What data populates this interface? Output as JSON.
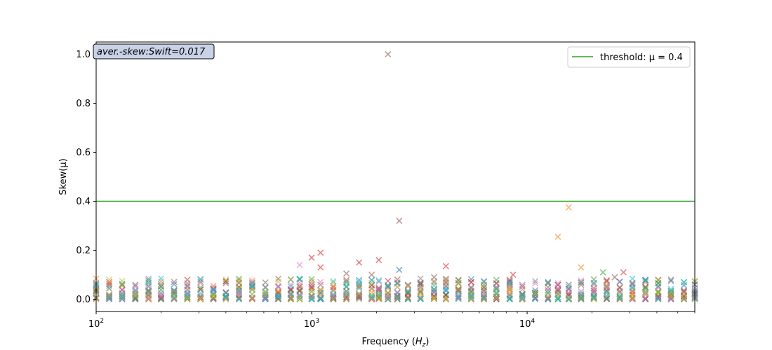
{
  "chart_data": {
    "type": "scatter",
    "xlabel": "Frequency (H_z)",
    "ylabel": "Skew(μ)",
    "xscale": "log",
    "xlim": [
      100,
      60000
    ],
    "ylim": [
      -0.05,
      1.05
    ],
    "x_ticks": [
      100,
      1000,
      10000
    ],
    "x_tick_labels": [
      {
        "base": "10",
        "exp": "2"
      },
      {
        "base": "10",
        "exp": "3"
      },
      {
        "base": "10",
        "exp": "4"
      }
    ],
    "y_ticks": [
      0.0,
      0.2,
      0.4,
      0.6,
      0.8,
      1.0
    ],
    "y_tick_labels": [
      "0.0",
      "0.2",
      "0.4",
      "0.6",
      "0.8",
      "1.0"
    ],
    "grid": false,
    "marker": "x",
    "legend": {
      "placement": "top-right",
      "entries": [
        {
          "label": "threshold: μ = 0.4",
          "color": "#2ca02c"
        }
      ]
    },
    "annotation": "aver.-skew:Swift=0.017",
    "threshold": {
      "y": 0.4,
      "color": "#2ca02c"
    },
    "frequencies": [
      100,
      115,
      132,
      152,
      175,
      200,
      230,
      265,
      305,
      350,
      400,
      460,
      530,
      610,
      700,
      800,
      880,
      1000,
      1100,
      1260,
      1450,
      1660,
      1900,
      2050,
      2260,
      2500,
      2800,
      3200,
      3700,
      4200,
      4800,
      5500,
      6300,
      7200,
      8300,
      9500,
      10900,
      12500,
      13900,
      15600,
      17800,
      20400,
      23400,
      26900,
      30800,
      35400,
      40600,
      46500,
      53400,
      60000
    ],
    "series_colors": [
      "#1f77b4",
      "#ff7f0e",
      "#2ca02c",
      "#d62728",
      "#9467bd",
      "#8c564b",
      "#e377c2",
      "#7f7f7f",
      "#bcbd22",
      "#17becf"
    ],
    "outliers": [
      {
        "x": 2260,
        "y": 1.0,
        "color": "#8c564b"
      },
      {
        "x": 2550,
        "y": 0.32,
        "color": "#8c564b"
      },
      {
        "x": 15600,
        "y": 0.375,
        "color": "#ff7f0e"
      },
      {
        "x": 13900,
        "y": 0.255,
        "color": "#ff7f0e"
      },
      {
        "x": 1100,
        "y": 0.19,
        "color": "#d62728"
      },
      {
        "x": 1000,
        "y": 0.17,
        "color": "#d62728"
      },
      {
        "x": 2050,
        "y": 0.16,
        "color": "#d62728"
      },
      {
        "x": 1660,
        "y": 0.15,
        "color": "#d62728"
      },
      {
        "x": 880,
        "y": 0.14,
        "color": "#e377c2"
      },
      {
        "x": 4200,
        "y": 0.135,
        "color": "#d62728"
      },
      {
        "x": 17800,
        "y": 0.13,
        "color": "#ff7f0e"
      },
      {
        "x": 1100,
        "y": 0.13,
        "color": "#d62728"
      },
      {
        "x": 2550,
        "y": 0.12,
        "color": "#1f77b4"
      },
      {
        "x": 22500,
        "y": 0.11,
        "color": "#2ca02c"
      },
      {
        "x": 28000,
        "y": 0.11,
        "color": "#d62728"
      },
      {
        "x": 1450,
        "y": 0.105,
        "color": "#8c564b"
      },
      {
        "x": 1900,
        "y": 0.1,
        "color": "#8c564b"
      },
      {
        "x": 8600,
        "y": 0.1,
        "color": "#d62728"
      },
      {
        "x": 25500,
        "y": 0.09,
        "color": "#8c564b"
      },
      {
        "x": 3700,
        "y": 0.09,
        "color": "#8c564b"
      },
      {
        "x": 40600,
        "y": 0.065,
        "color": "#2ca02c"
      },
      {
        "x": 60000,
        "y": 0.06,
        "color": "#1f77b4"
      }
    ]
  }
}
